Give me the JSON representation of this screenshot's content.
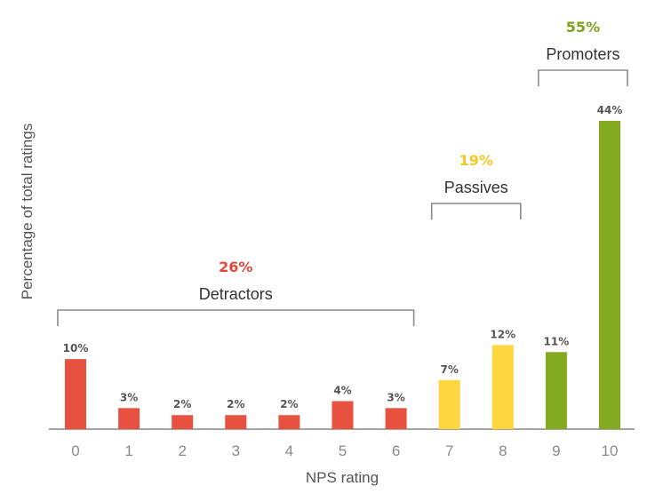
{
  "chart_data": {
    "type": "bar",
    "title": "",
    "xlabel": "NPS rating",
    "ylabel": "Percentage of total ratings",
    "ylim": [
      0,
      44
    ],
    "grid": false,
    "categories": [
      "0",
      "1",
      "2",
      "3",
      "4",
      "5",
      "6",
      "7",
      "8",
      "9",
      "10"
    ],
    "values": [
      10,
      3,
      2,
      2,
      2,
      4,
      3,
      7,
      12,
      11,
      44
    ],
    "value_labels": [
      "10%",
      "3%",
      "2%",
      "2%",
      "2%",
      "4%",
      "3%",
      "7%",
      "12%",
      "11%",
      "44%"
    ],
    "bar_colors": [
      "#e8513f",
      "#e8513f",
      "#e8513f",
      "#e8513f",
      "#e8513f",
      "#e8513f",
      "#e8513f",
      "#fdd53e",
      "#fdd53e",
      "#84aa22",
      "#84aa22"
    ],
    "groups": [
      {
        "name": "Detractors",
        "percent": "26%",
        "color": "#e2473a",
        "from": 0,
        "to": 6
      },
      {
        "name": "Passives",
        "percent": "19%",
        "color": "#f5c922",
        "from": 7,
        "to": 8
      },
      {
        "name": "Promoters",
        "percent": "55%",
        "color": "#7ea31b",
        "from": 9,
        "to": 10
      }
    ]
  }
}
